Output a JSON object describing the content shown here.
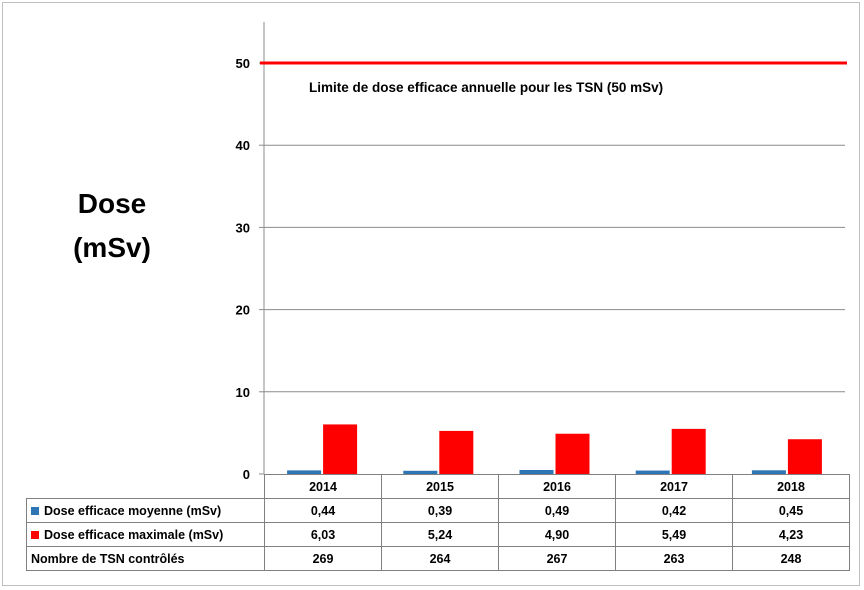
{
  "chart_data": {
    "type": "bar",
    "ylabel_line1": "Dose",
    "ylabel_line2": "(mSv)",
    "ylim": [
      0,
      55
    ],
    "yticks": [
      0,
      10,
      20,
      30,
      40,
      50
    ],
    "categories": [
      "2014",
      "2015",
      "2016",
      "2017",
      "2018"
    ],
    "series": [
      {
        "name": "Dose efficace moyenne (mSv)",
        "color": "#2e75b6",
        "values": [
          0.44,
          0.39,
          0.49,
          0.42,
          0.45
        ],
        "labels": [
          "0,44",
          "0,39",
          "0,49",
          "0,42",
          "0,45"
        ]
      },
      {
        "name": "Dose efficace maximale (mSv)",
        "color": "#ff0000",
        "values": [
          6.03,
          5.24,
          4.9,
          5.49,
          4.23
        ],
        "labels": [
          "6,03",
          "5,24",
          "4,90",
          "5,49",
          "4,23"
        ]
      }
    ],
    "reference_line": {
      "value": 50,
      "color": "#ff0000",
      "label": "Limite de dose efficace annuelle pour les TSN (50 mSv)"
    },
    "table_extra_row": {
      "name": "Nombre de TSN contrôlés",
      "values": [
        "269",
        "264",
        "267",
        "263",
        "248"
      ]
    },
    "grid": true
  }
}
